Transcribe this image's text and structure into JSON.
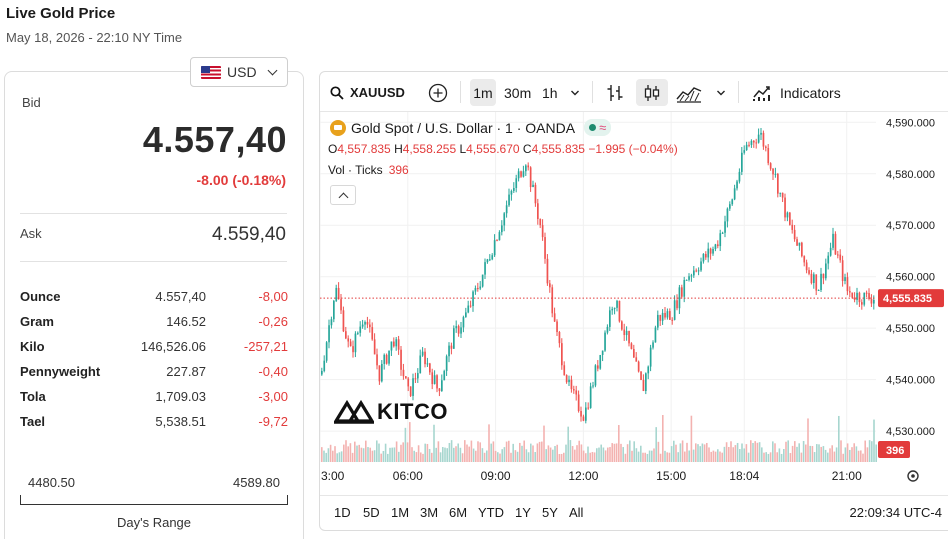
{
  "page": {
    "title": "Live Gold Price",
    "subtitle": "May 18, 2026 - 22:10 NY Time"
  },
  "currency": {
    "selected": "USD",
    "flag_icon": "us-flag-icon"
  },
  "quote": {
    "bid_label": "Bid",
    "bid": "4.557,40",
    "change": "-8.00 (-0.18%)",
    "ask_label": "Ask",
    "ask": "4.559,40"
  },
  "units": [
    {
      "name": "Ounce",
      "price": "4.557,40",
      "change": "-8,00"
    },
    {
      "name": "Gram",
      "price": "146.52",
      "change": "-0,26"
    },
    {
      "name": "Kilo",
      "price": "146,526.06",
      "change": "-257,21"
    },
    {
      "name": "Pennyweight",
      "price": "227.87",
      "change": "-0,40"
    },
    {
      "name": "Tola",
      "price": "1,709.03",
      "change": "-3,00"
    },
    {
      "name": "Tael",
      "price": "5,538.51",
      "change": "-9,72"
    }
  ],
  "days_range": {
    "low": "4480.50",
    "high": "4589.80",
    "label": "Day's Range"
  },
  "toolbar": {
    "symbol": "XAUUSD",
    "intervals": [
      "1m",
      "30m",
      "1h"
    ],
    "active_interval": "1m",
    "indicators_label": "Indicators"
  },
  "legend": {
    "name": "Gold Spot / U.S. Dollar · 1 · OANDA",
    "approx_symbol": "≈",
    "o_label": "O",
    "o": "4,557.835",
    "h_label": "H",
    "h": "4,558.255",
    "l_label": "L",
    "l": "4,555.670",
    "c_label": "C",
    "c": "4,555.835",
    "change": "−1.995 (−0.04%)",
    "vol_label": "Vol · Ticks",
    "vol_value": "396"
  },
  "watermark": {
    "text": "KITCO"
  },
  "bottom": {
    "ranges": [
      "1D",
      "5D",
      "1M",
      "3M",
      "6M",
      "YTD",
      "1Y",
      "5Y",
      "All"
    ],
    "clock": "22:09:34 UTC-4"
  },
  "colors": {
    "up": "#26a69a",
    "down": "#ef5350",
    "last_price": "#e23b3b",
    "volume_up": "#a7d6cf",
    "volume_down": "#f3b2b0"
  },
  "chart_data": {
    "type": "line",
    "series": [
      {
        "x": [
          "03:00",
          "03:30",
          "04:00",
          "04:30",
          "05:00",
          "05:30",
          "06:00",
          "06:30",
          "07:00",
          "07:30",
          "08:00",
          "08:30",
          "09:00",
          "09:30",
          "10:00",
          "10:30",
          "11:00",
          "11:30",
          "12:00",
          "12:30",
          "13:00",
          "13:30",
          "14:00",
          "14:30",
          "15:00",
          "15:30",
          "16:00",
          "16:30",
          "17:00",
          "17:30",
          "18:00",
          "18:30",
          "19:00",
          "19:30",
          "20:00",
          "20:30",
          "21:00",
          "21:30",
          "22:00"
        ],
        "values": [
          4541,
          4558,
          4545,
          4553,
          4541,
          4548,
          4537,
          4545,
          4538,
          4548,
          4553,
          4560,
          4568,
          4576,
          4583,
          4570,
          4550,
          4538,
          4533,
          4544,
          4556,
          4547,
          4538,
          4552,
          4553,
          4560,
          4563,
          4566,
          4574,
          4585,
          4588,
          4580,
          4570,
          4563,
          4558,
          4567,
          4557,
          4556,
          4556
        ]
      }
    ],
    "x_ticks": [
      "3:00",
      "06:00",
      "09:00",
      "12:00",
      "15:00",
      "18:04",
      "21:00"
    ],
    "y_ticks": [
      "4,590.000",
      "4,580.000",
      "4,570.000",
      "4,560.000",
      "4,550.000",
      "4,540.000",
      "4,530.000"
    ],
    "ylim": [
      4524,
      4592
    ],
    "last_price_label": "4,555.835",
    "volume_label": "396",
    "grid": true
  }
}
